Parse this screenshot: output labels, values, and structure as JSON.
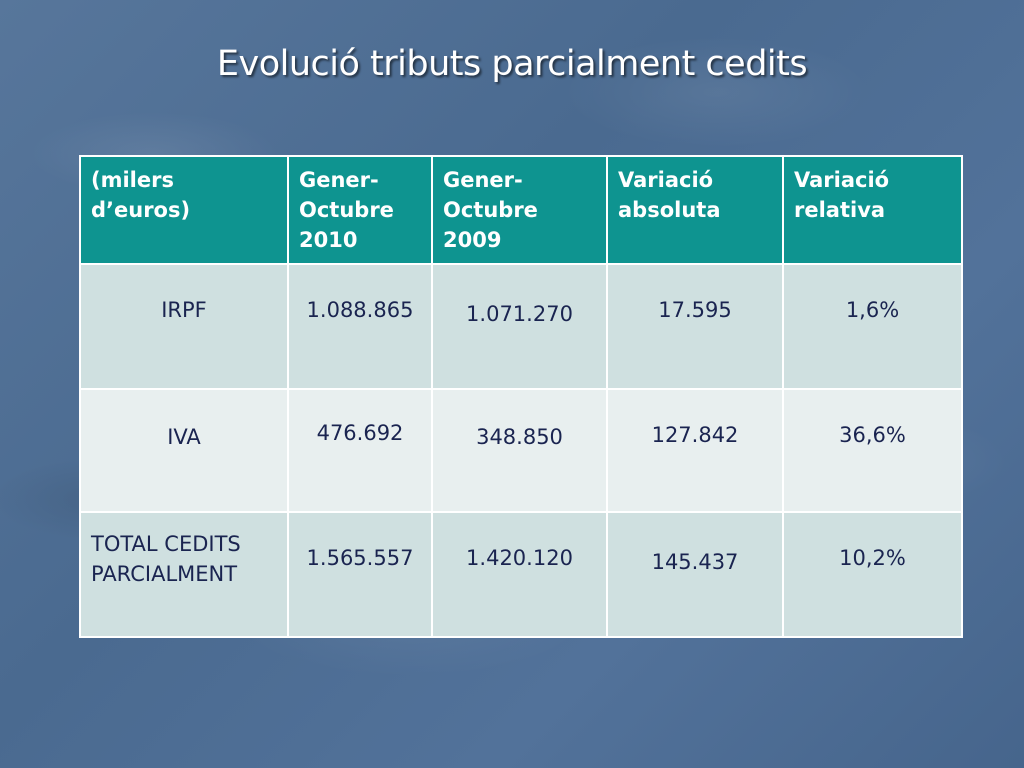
{
  "title": "Evolució tributs parcialment cedits",
  "table": {
    "headers": [
      "(milers d’euros)",
      "Gener-Octubre 2010",
      "Gener-Octubre 2009",
      "Variació absoluta",
      "Variació relativa"
    ],
    "rows": [
      {
        "label": "IRPF",
        "y2010": "1.088.865",
        "y2009": "1.071.270",
        "abs": "17.595",
        "rel": "1,6%"
      },
      {
        "label": "IVA",
        "y2010": "476.692",
        "y2009": "348.850",
        "abs": "127.842",
        "rel": "36,6%"
      },
      {
        "label": "TOTAL  CEDITS PARCIALMENT",
        "y2010": "1.565.557",
        "y2009": "1.420.120",
        "abs": "145.437",
        "rel": "10,2%"
      }
    ]
  },
  "colors": {
    "header_bg": "#0e9490",
    "row_dark": "#cfe0e0",
    "row_light": "#e8efef",
    "text": "#1a2450",
    "background": "#4f6f94"
  }
}
